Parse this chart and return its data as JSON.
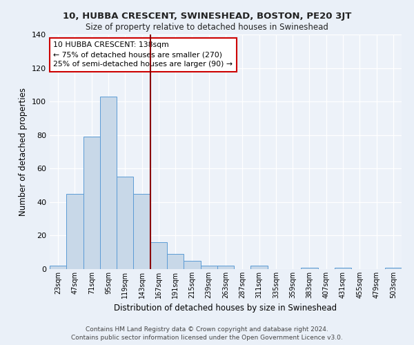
{
  "title1": "10, HUBBA CRESCENT, SWINESHEAD, BOSTON, PE20 3JT",
  "title2": "Size of property relative to detached houses in Swineshead",
  "xlabel": "Distribution of detached houses by size in Swineshead",
  "ylabel": "Number of detached properties",
  "footer1": "Contains HM Land Registry data © Crown copyright and database right 2024.",
  "footer2": "Contains public sector information licensed under the Open Government Licence v3.0.",
  "annotation_line1": "10 HUBBA CRESCENT: 138sqm",
  "annotation_line2": "← 75% of detached houses are smaller (270)",
  "annotation_line3": "25% of semi-detached houses are larger (90) →",
  "bin_labels": [
    "23sqm",
    "47sqm",
    "71sqm",
    "95sqm",
    "119sqm",
    "143sqm",
    "167sqm",
    "191sqm",
    "215sqm",
    "239sqm",
    "263sqm",
    "287sqm",
    "311sqm",
    "335sqm",
    "359sqm",
    "383sqm",
    "407sqm",
    "431sqm",
    "455sqm",
    "479sqm",
    "503sqm"
  ],
  "bar_values": [
    2,
    45,
    79,
    103,
    55,
    45,
    16,
    9,
    5,
    2,
    2,
    0,
    2,
    0,
    0,
    1,
    0,
    1,
    0,
    0,
    1
  ],
  "bar_color": "#c8d8e8",
  "bar_edge_color": "#5b9bd5",
  "vline_x": 5.5,
  "vline_color": "#8b0000",
  "annotation_box_color": "#ffffff",
  "annotation_box_edge": "#cc0000",
  "bg_color": "#eaf0f8",
  "plot_bg_color": "#edf2f9",
  "grid_color": "#ffffff",
  "ylim": [
    0,
    140
  ],
  "yticks": [
    0,
    20,
    40,
    60,
    80,
    100,
    120,
    140
  ]
}
